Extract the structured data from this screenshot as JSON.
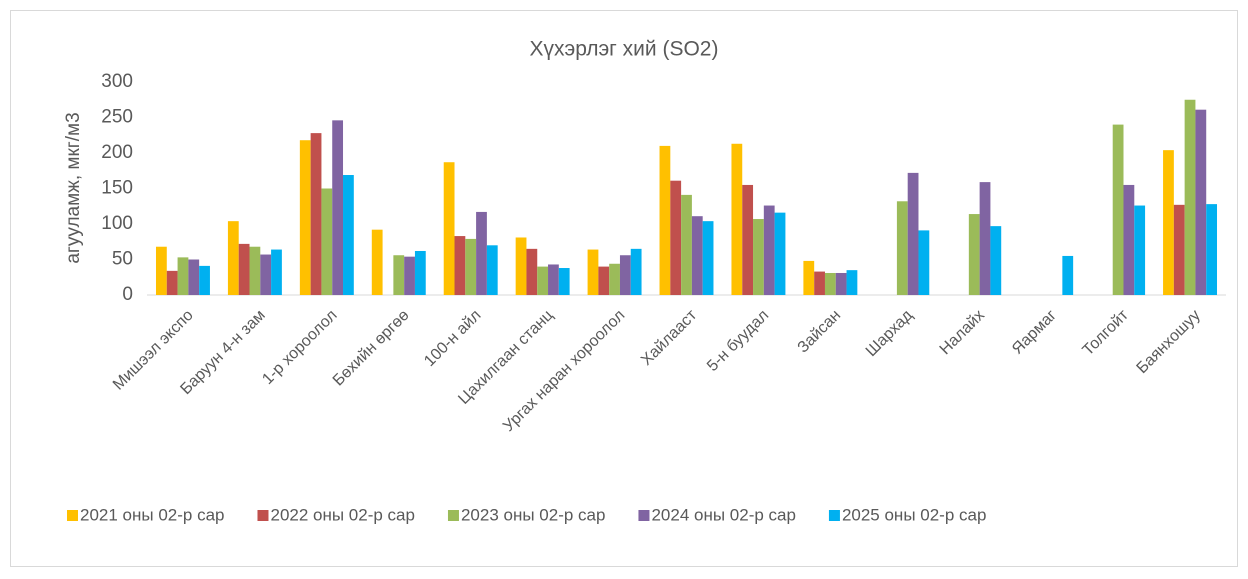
{
  "chart_data": {
    "type": "bar",
    "title": "Хүхэрлэг хий (SO2)",
    "y_label": "агууламж, мкг/м3",
    "categories": [
      "Мишээл экспо",
      "Баруун 4-н зам",
      "1-р хороолол",
      "Бөхийн өргөө",
      "100-н айл",
      "Цахилгаан станц",
      "Ургах наран хороолол",
      "Хайлааст",
      "5-н буудал",
      "Зайсан",
      "Шархад",
      "Налайх",
      "Яармаг",
      "Толгойт",
      "Баянхошуу"
    ],
    "series": [
      {
        "name": "2021 оны 02-р сар",
        "color": "#FFC000",
        "values": [
          68,
          104,
          218,
          92,
          187,
          81,
          64,
          210,
          213,
          48,
          null,
          null,
          null,
          null,
          204
        ]
      },
      {
        "name": "2022 оны 02-р сар",
        "color": "#C0504D",
        "values": [
          34,
          72,
          228,
          null,
          83,
          65,
          40,
          161,
          155,
          33,
          null,
          null,
          null,
          null,
          127
        ]
      },
      {
        "name": "2023 оны 02-р сар",
        "color": "#9BBB59",
        "values": [
          53,
          68,
          150,
          56,
          79,
          40,
          44,
          141,
          107,
          31,
          132,
          114,
          null,
          240,
          275
        ]
      },
      {
        "name": "2024 оны 02-р сар",
        "color": "#8064A2",
        "values": [
          50,
          57,
          246,
          54,
          117,
          43,
          56,
          111,
          126,
          31,
          172,
          159,
          null,
          155,
          261
        ]
      },
      {
        "name": "2025 оны 02-р сар",
        "color": "#00B0F0",
        "values": [
          41,
          64,
          169,
          62,
          70,
          38,
          65,
          104,
          116,
          35,
          91,
          97,
          55,
          126,
          128
        ]
      }
    ],
    "ylim": [
      0,
      300
    ],
    "yticks": [
      0,
      50,
      100,
      150,
      200,
      250,
      300
    ],
    "grid": false,
    "legend": "bottom"
  }
}
